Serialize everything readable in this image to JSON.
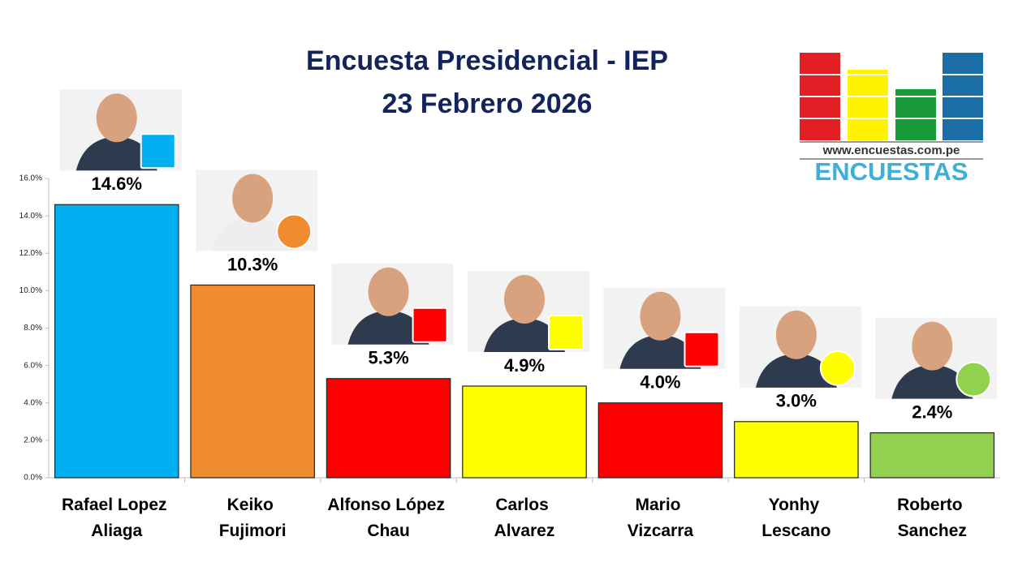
{
  "chart_data": {
    "type": "bar",
    "title": "Encuesta Presidencial - IEP",
    "subtitle": "23 Febrero 2026",
    "categories": [
      "Rafael Lopez Aliaga",
      "Keiko Fujimori",
      "Alfonso López Chau",
      "Carlos Alvarez",
      "Mario Vizcarra",
      "Yonhy Lescano",
      "Roberto Sanchez"
    ],
    "values": [
      14.6,
      10.3,
      5.3,
      4.9,
      4.0,
      3.0,
      2.4
    ],
    "value_labels": [
      "14.6%",
      "10.3%",
      "5.3%",
      "4.9%",
      "4.0%",
      "3.0%",
      "2.4%"
    ],
    "colors": [
      "#00b0f0",
      "#f08c30",
      "#ff0000",
      "#ffff00",
      "#ff0000",
      "#ffff00",
      "#92d050"
    ],
    "ylim": [
      0,
      16
    ],
    "yticks": [
      {
        "value": 0,
        "label": "0.0%"
      },
      {
        "value": 2,
        "label": "2.0%"
      },
      {
        "value": 4,
        "label": "4.0%"
      },
      {
        "value": 6,
        "label": "6.0%"
      },
      {
        "value": 8,
        "label": "8.0%"
      },
      {
        "value": 10,
        "label": "10.0%"
      },
      {
        "value": 12,
        "label": "12.0%"
      },
      {
        "value": 14,
        "label": "14.0%"
      },
      {
        "value": 16,
        "label": "16.0%"
      }
    ],
    "grid": false,
    "logo": {
      "url": "www.encuestas.com.pe",
      "name": "ENCUESTAS"
    }
  }
}
